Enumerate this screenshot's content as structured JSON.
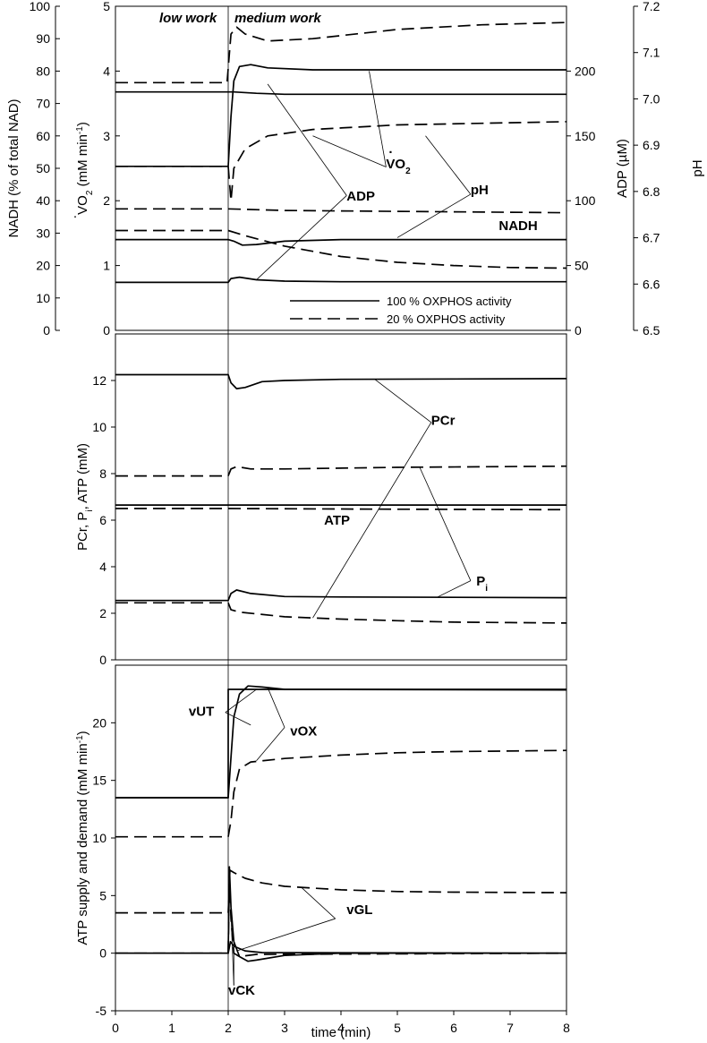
{
  "chart_data": [
    {
      "type": "line",
      "phase_labels": [
        "low work",
        "medium work"
      ],
      "xlim": [
        0,
        8
      ],
      "left_axes": [
        {
          "label": "NADH (% of total NAD)",
          "ylim": [
            0,
            100
          ],
          "ticks": [
            "0",
            "10",
            "20",
            "30",
            "40",
            "50",
            "60",
            "70",
            "80",
            "90",
            "100"
          ]
        },
        {
          "label": "VO2 (mM min-1)",
          "label_parts": [
            "V",
            "O",
            "2",
            " (mM min",
            "-1",
            ")"
          ],
          "ylim": [
            0,
            5
          ],
          "ticks": [
            "0",
            "1",
            "2",
            "3",
            "4",
            "5"
          ]
        }
      ],
      "right_axes": [
        {
          "label": "ADP (µM)",
          "ylim": [
            0,
            250
          ],
          "ticks": [
            "0",
            "50",
            "100",
            "150",
            "200"
          ]
        },
        {
          "label": "pH",
          "ylim": [
            6.5,
            7.2
          ],
          "ticks": [
            "6.5",
            "6.6",
            "6.7",
            "6.8",
            "6.9",
            "7.0",
            "7.1",
            "7.2"
          ]
        }
      ],
      "legend": {
        "position": "bottom-right",
        "entries": [
          {
            "label": "100 % OXPHOS activity",
            "style": "solid"
          },
          {
            "label": "20 % OXPHOS activity",
            "style": "dashed"
          }
        ]
      },
      "annotations": [
        {
          "text": "ADP",
          "x": 4.1,
          "y": 2.0
        },
        {
          "text": "pH",
          "x": 6.3,
          "y": 2.1
        },
        {
          "text": "NADH",
          "x": 6.8,
          "y": 1.55
        },
        {
          "text": "VO2",
          "parts": [
            "V",
            "O",
            "2"
          ],
          "x": 4.8,
          "y": 2.5
        }
      ],
      "series": [
        {
          "variable": "VO2",
          "axis": "VO2",
          "oxphos": 100,
          "points": [
            [
              0,
              2.53
            ],
            [
              2,
              2.53
            ],
            [
              2.05,
              3.3
            ],
            [
              2.1,
              3.85
            ],
            [
              2.2,
              4.07
            ],
            [
              2.4,
              4.1
            ],
            [
              2.7,
              4.05
            ],
            [
              3.5,
              4.02
            ],
            [
              8,
              4.02
            ]
          ]
        },
        {
          "variable": "VO2",
          "axis": "VO2",
          "oxphos": 20,
          "points": [
            [
              0,
              2.53
            ],
            [
              2,
              2.53
            ],
            [
              2.05,
              2.0
            ],
            [
              2.1,
              2.5
            ],
            [
              2.3,
              2.8
            ],
            [
              2.7,
              3.0
            ],
            [
              3.5,
              3.1
            ],
            [
              5,
              3.17
            ],
            [
              8,
              3.22
            ]
          ]
        },
        {
          "variable": "pH",
          "axis": "pH",
          "oxphos": 100,
          "points": [
            [
              0,
              7.015
            ],
            [
              2,
              7.015
            ],
            [
              2.1,
              7.015
            ],
            [
              2.5,
              7.012
            ],
            [
              3,
              7.01
            ],
            [
              8,
              7.01
            ]
          ]
        },
        {
          "variable": "pH",
          "axis": "pH",
          "oxphos": 20,
          "points": [
            [
              0,
              7.035
            ],
            [
              1.98,
              7.035
            ],
            [
              2.05,
              7.14
            ],
            [
              2.15,
              7.155
            ],
            [
              2.3,
              7.14
            ],
            [
              2.7,
              7.125
            ],
            [
              3.5,
              7.13
            ],
            [
              5,
              7.15
            ],
            [
              6.5,
              7.16
            ],
            [
              8,
              7.165
            ]
          ]
        },
        {
          "variable": "ADP",
          "axis": "ADP",
          "oxphos": 100,
          "points": [
            [
              0,
              37
            ],
            [
              2,
              37
            ],
            [
              2.05,
              40
            ],
            [
              2.2,
              41
            ],
            [
              2.5,
              39
            ],
            [
              3,
              38
            ],
            [
              4,
              37.5
            ],
            [
              8,
              37.5
            ]
          ]
        },
        {
          "variable": "ADP",
          "axis": "ADP",
          "oxphos": 20,
          "points": [
            [
              0,
              77
            ],
            [
              2,
              77
            ],
            [
              2.3,
              73
            ],
            [
              3,
              65
            ],
            [
              4,
              57
            ],
            [
              5,
              52.5
            ],
            [
              6,
              50
            ],
            [
              7,
              48.5
            ],
            [
              8,
              48
            ]
          ]
        },
        {
          "variable": "NADH",
          "axis": "NADH",
          "oxphos": 100,
          "points": [
            [
              0,
              28
            ],
            [
              2,
              28
            ],
            [
              2.1,
              27.5
            ],
            [
              2.25,
              26.3
            ],
            [
              2.5,
              26.5
            ],
            [
              3,
              27.5
            ],
            [
              4,
              28
            ],
            [
              8,
              28
            ]
          ]
        },
        {
          "variable": "NADH",
          "axis": "NADH",
          "oxphos": 20,
          "points": [
            [
              0,
              37.5
            ],
            [
              2,
              37.5
            ],
            [
              3,
              37
            ],
            [
              5,
              36.7
            ],
            [
              8,
              36.3
            ]
          ]
        }
      ]
    },
    {
      "type": "line",
      "ylabel": "PCr, Pi, ATP (mM)",
      "ylabel_parts": [
        "PCr, P",
        "i",
        ", ATP (mM)"
      ],
      "xlim": [
        0,
        8
      ],
      "ylim": [
        0,
        14
      ],
      "yticks": [
        "0",
        "2",
        "4",
        "6",
        "8",
        "10",
        "12"
      ],
      "annotations": [
        {
          "text": "PCr",
          "x": 5.6,
          "y": 10.1
        },
        {
          "text": "ATP",
          "x": 3.7,
          "y": 5.8
        },
        {
          "text": "Pi",
          "parts": [
            "P",
            "i"
          ],
          "x": 6.4,
          "y": 3.2
        }
      ],
      "series": [
        {
          "variable": "PCr",
          "oxphos": 100,
          "points": [
            [
              0,
              12.25
            ],
            [
              2,
              12.25
            ],
            [
              2.05,
              11.9
            ],
            [
              2.15,
              11.65
            ],
            [
              2.3,
              11.7
            ],
            [
              2.6,
              11.95
            ],
            [
              3,
              12.0
            ],
            [
              4,
              12.05
            ],
            [
              8,
              12.08
            ]
          ]
        },
        {
          "variable": "PCr",
          "oxphos": 20,
          "points": [
            [
              0,
              2.45
            ],
            [
              2,
              2.45
            ],
            [
              2.05,
              2.15
            ],
            [
              2.2,
              2.05
            ],
            [
              3,
              1.85
            ],
            [
              4,
              1.75
            ],
            [
              5,
              1.68
            ],
            [
              6,
              1.62
            ],
            [
              7,
              1.6
            ],
            [
              8,
              1.58
            ]
          ]
        },
        {
          "variable": "Pi",
          "oxphos": 100,
          "points": [
            [
              0,
              2.55
            ],
            [
              2,
              2.55
            ],
            [
              2.05,
              2.85
            ],
            [
              2.15,
              3.0
            ],
            [
              2.4,
              2.85
            ],
            [
              3,
              2.72
            ],
            [
              4,
              2.7
            ],
            [
              8,
              2.67
            ]
          ]
        },
        {
          "variable": "Pi",
          "oxphos": 20,
          "points": [
            [
              0,
              7.9
            ],
            [
              2,
              7.9
            ],
            [
              2.05,
              8.2
            ],
            [
              2.15,
              8.3
            ],
            [
              2.4,
              8.2
            ],
            [
              3,
              8.2
            ],
            [
              5,
              8.27
            ],
            [
              8,
              8.32
            ]
          ]
        },
        {
          "variable": "ATP",
          "oxphos": 100,
          "points": [
            [
              0,
              6.65
            ],
            [
              8,
              6.65
            ]
          ]
        },
        {
          "variable": "ATP",
          "oxphos": 20,
          "points": [
            [
              0,
              6.5
            ],
            [
              2,
              6.5
            ],
            [
              5,
              6.47
            ],
            [
              8,
              6.45
            ]
          ]
        }
      ]
    },
    {
      "type": "line",
      "ylabel": "ATP supply and demand (mM min-1)",
      "ylabel_parts": [
        "ATP supply and demand (mM min",
        "-1",
        ")"
      ],
      "xlabel": "time (min)",
      "xlim": [
        0,
        8
      ],
      "xticks": [
        "0",
        "1",
        "2",
        "3",
        "4",
        "5",
        "6",
        "7",
        "8"
      ],
      "ylim": [
        -5,
        25
      ],
      "yticks": [
        "-5",
        "0",
        "5",
        "10",
        "15",
        "20"
      ],
      "annotations": [
        {
          "text": "vUT",
          "x": 1.3,
          "y": 20.6
        },
        {
          "text": "vOX",
          "x": 3.1,
          "y": 18.9
        },
        {
          "text": "vGL",
          "x": 4.1,
          "y": 3.4
        },
        {
          "text": "vCK",
          "x": 2.0,
          "y": -3.6
        }
      ],
      "series": [
        {
          "variable": "vUT",
          "oxphos": 100,
          "points": [
            [
              0,
              13.5
            ],
            [
              2,
              13.5
            ],
            [
              2,
              22.9
            ],
            [
              8,
              22.9
            ]
          ]
        },
        {
          "variable": "vOX",
          "oxphos": 100,
          "points": [
            [
              0,
              13.5
            ],
            [
              2,
              13.5
            ],
            [
              2.05,
              17
            ],
            [
              2.1,
              20.5
            ],
            [
              2.2,
              22.5
            ],
            [
              2.35,
              23.2
            ],
            [
              2.6,
              23.1
            ],
            [
              3,
              22.9
            ],
            [
              8,
              22.85
            ]
          ]
        },
        {
          "variable": "vOX",
          "oxphos": 20,
          "points": [
            [
              0,
              10.1
            ],
            [
              2,
              10.1
            ],
            [
              2.05,
              11.5
            ],
            [
              2.1,
              14
            ],
            [
              2.2,
              16
            ],
            [
              2.4,
              16.6
            ],
            [
              3,
              16.9
            ],
            [
              4,
              17.2
            ],
            [
              5,
              17.4
            ],
            [
              6,
              17.5
            ],
            [
              8,
              17.6
            ]
          ]
        },
        {
          "variable": "vGL",
          "oxphos": 100,
          "points": [
            [
              0,
              0
            ],
            [
              2,
              0
            ],
            [
              2.04,
              1
            ],
            [
              2.1,
              0.6
            ],
            [
              2.3,
              0.2
            ],
            [
              2.6,
              0.05
            ],
            [
              8,
              0
            ]
          ]
        },
        {
          "variable": "vGL",
          "oxphos": 20,
          "points": [
            [
              0,
              3.5
            ],
            [
              2,
              3.5
            ],
            [
              2.03,
              7.2
            ],
            [
              2.1,
              7.0
            ],
            [
              2.3,
              6.5
            ],
            [
              2.6,
              6.1
            ],
            [
              3,
              5.8
            ],
            [
              4,
              5.5
            ],
            [
              5,
              5.35
            ],
            [
              6,
              5.3
            ],
            [
              8,
              5.25
            ]
          ]
        },
        {
          "variable": "vCK",
          "oxphos": 100,
          "points": [
            [
              0,
              0
            ],
            [
              2,
              0
            ],
            [
              2.02,
              7.5
            ],
            [
              2.05,
              4
            ],
            [
              2.1,
              1
            ],
            [
              2.2,
              -0.3
            ],
            [
              2.35,
              -0.7
            ],
            [
              2.5,
              -0.6
            ],
            [
              3,
              -0.2
            ],
            [
              4,
              0
            ],
            [
              8,
              0
            ]
          ]
        },
        {
          "variable": "vCK",
          "oxphos": 20,
          "points": [
            [
              0,
              0
            ],
            [
              2,
              0
            ],
            [
              2.02,
              6.8
            ],
            [
              2.05,
              3
            ],
            [
              2.1,
              0
            ],
            [
              2.2,
              -0.3
            ],
            [
              2.5,
              -0.1
            ],
            [
              8,
              0
            ]
          ]
        }
      ]
    }
  ]
}
